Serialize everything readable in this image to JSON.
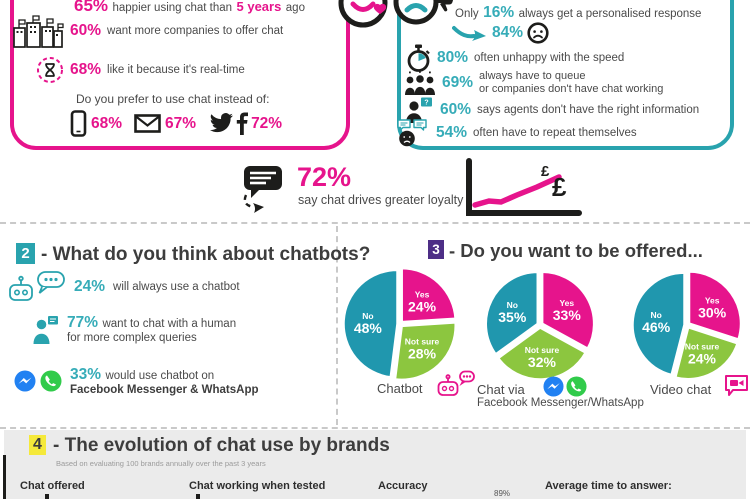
{
  "colors": {
    "pink": "#e6148c",
    "teal": "#29a3ae",
    "teal_text": "#36acb8",
    "green": "#8cc63f",
    "pie_teal": "#2097ae",
    "purple": "#4d2e86",
    "yellow": "#f5e93a",
    "ink": "#1d1d1b",
    "messenger_blue": "#2181f2",
    "whatsapp_green": "#31cb4b"
  },
  "icons": {
    "question_mark": "?"
  },
  "panel_satisfaction": {
    "line1": {
      "pct": "65%",
      "mid": "happier using chat than",
      "highlight": "5 years",
      "end": "ago"
    },
    "more_companies": {
      "pct": "60%",
      "text": "want more companies to offer chat"
    },
    "real_time": {
      "pct": "68%",
      "text": "like it because it's real-time"
    },
    "prefer_heading": "Do you prefer to use chat instead of:",
    "prefer_phone_pct": "68%",
    "prefer_email_pct": "67%",
    "prefer_social_pct": "72%"
  },
  "panel_frustration": {
    "personalised": {
      "pre": "Only",
      "pct": "16%",
      "text": "always get a personalised response"
    },
    "arrow_pct": "84%",
    "speed": {
      "pct": "80%",
      "text": "often unhappy with the speed"
    },
    "queue": {
      "pct": "69%",
      "line1": "always have to queue",
      "line2": "or companies don't have chat working"
    },
    "agents": {
      "pct": "60%",
      "text": "says agents don't have the right information"
    },
    "repeat": {
      "pct": "54%",
      "text": "often have to repeat themselves"
    }
  },
  "loyalty": {
    "pct": "72%",
    "text": "say chat drives greater loyalty",
    "currency": "£"
  },
  "section2": {
    "badge": "2",
    "title": "- What do you think about chatbots?",
    "chatbot_use": {
      "pct": "24%",
      "text": "will always use a chatbot"
    },
    "human": {
      "pct": "77%",
      "line1": "want to chat with a human",
      "line2": "for more complex queries"
    },
    "messenger": {
      "pct": "33%",
      "line1": "would use chatbot on",
      "line2": "Facebook Messenger & WhatsApp"
    }
  },
  "section3": {
    "badge": "3",
    "title": "- Do you want to be offered...",
    "label_pie1": "Chatbot",
    "label_pie2_line1": "Chat via",
    "label_pie2_line2": "Facebook Messenger/WhatsApp",
    "label_pie3": "Video chat"
  },
  "chart_data": [
    {
      "type": "pie",
      "title": "Chatbot",
      "legend_position": "inside",
      "slices": [
        {
          "label": "Yes",
          "value": 24,
          "color": "#e6148c"
        },
        {
          "label": "Not sure",
          "value": 28,
          "color": "#8cc63f"
        },
        {
          "label": "No",
          "value": 48,
          "color": "#2097ae"
        }
      ]
    },
    {
      "type": "pie",
      "title": "Chat via Facebook Messenger/WhatsApp",
      "legend_position": "inside",
      "slices": [
        {
          "label": "Yes",
          "value": 33,
          "color": "#e6148c"
        },
        {
          "label": "Not sure",
          "value": 32,
          "color": "#8cc63f"
        },
        {
          "label": "No",
          "value": 35,
          "color": "#2097ae"
        }
      ]
    },
    {
      "type": "pie",
      "title": "Video chat",
      "legend_position": "inside",
      "slices": [
        {
          "label": "Yes",
          "value": 30,
          "color": "#e6148c"
        },
        {
          "label": "Not sure",
          "value": 24,
          "color": "#8cc63f"
        },
        {
          "label": "No",
          "value": 46,
          "color": "#2097ae"
        }
      ]
    }
  ],
  "section4": {
    "badge": "4",
    "title": "- The evolution of chat use by brands",
    "subtitle": "Based on evaluating 100 brands annually over the past 3 years",
    "col_chat_offered": "Chat offered",
    "col_chat_working": "Chat working when tested",
    "col_accuracy": "Accuracy",
    "accuracy_value": "89%",
    "col_avg_time": "Average time to answer:"
  }
}
